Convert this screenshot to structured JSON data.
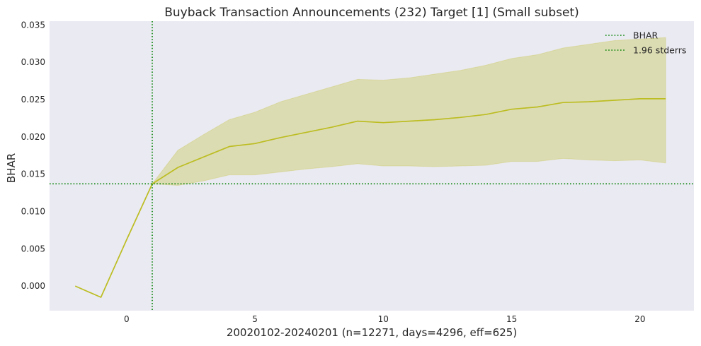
{
  "chart_data": {
    "type": "line",
    "title": "Buyback Transaction Announcements (232) Target [1] (Small subset)",
    "xlabel": "20020102-20240201 (n=12271, days=4296, eff=625)",
    "ylabel": "BHAR",
    "xlim": [
      -3,
      22.1
    ],
    "ylim": [
      -0.0033,
      0.0355
    ],
    "xticks": [
      0,
      5,
      10,
      15,
      20
    ],
    "yticks": [
      0.0,
      0.005,
      0.01,
      0.015,
      0.02,
      0.025,
      0.03,
      0.035
    ],
    "ytick_labels": [
      "0.000",
      "0.005",
      "0.010",
      "0.015",
      "0.020",
      "0.025",
      "0.030",
      "0.035"
    ],
    "grid": false,
    "legend_position": "top-right",
    "series": [
      {
        "name": "BHAR",
        "color": "#bcbd22",
        "x": [
          -2,
          -1,
          0,
          1,
          2,
          3,
          4,
          5,
          6,
          7,
          8,
          9,
          10,
          11,
          12,
          13,
          14,
          15,
          16,
          17,
          18,
          19,
          20,
          21
        ],
        "y": [
          0.0,
          -0.0015,
          0.0062,
          0.0137,
          0.0159,
          0.0173,
          0.0187,
          0.0191,
          0.0199,
          0.0206,
          0.0213,
          0.0221,
          0.0219,
          0.0221,
          0.0223,
          0.0226,
          0.023,
          0.0237,
          0.024,
          0.0246,
          0.0247,
          0.0249,
          0.0251,
          0.0251
        ]
      }
    ],
    "band": {
      "name": "1.96 stderrs",
      "x": [
        1,
        2,
        3,
        4,
        5,
        6,
        7,
        8,
        9,
        10,
        11,
        12,
        13,
        14,
        15,
        16,
        17,
        18,
        19,
        20,
        21
      ],
      "lower": [
        0.0137,
        0.0135,
        0.0141,
        0.0149,
        0.0149,
        0.0153,
        0.0157,
        0.016,
        0.0164,
        0.0161,
        0.0161,
        0.016,
        0.0161,
        0.0162,
        0.0167,
        0.0167,
        0.0171,
        0.0169,
        0.0168,
        0.0169,
        0.0165
      ],
      "upper": [
        0.0137,
        0.0182,
        0.0203,
        0.0223,
        0.0233,
        0.0247,
        0.0257,
        0.0267,
        0.0277,
        0.0276,
        0.0279,
        0.0284,
        0.0289,
        0.0296,
        0.0305,
        0.031,
        0.0319,
        0.0324,
        0.0329,
        0.0331,
        0.0333
      ],
      "color": "#bcbd22"
    },
    "reference_lines": {
      "vertical_x": 1,
      "horizontal_y": 0.0137,
      "color": "#008000",
      "style": "dotted"
    },
    "legend": [
      {
        "label": "BHAR",
        "color": "#008000",
        "style": "dotted"
      },
      {
        "label": "1.96 stderrs",
        "color": "#008000",
        "style": "dotted"
      }
    ],
    "plot_background": "#eaeaf2"
  }
}
